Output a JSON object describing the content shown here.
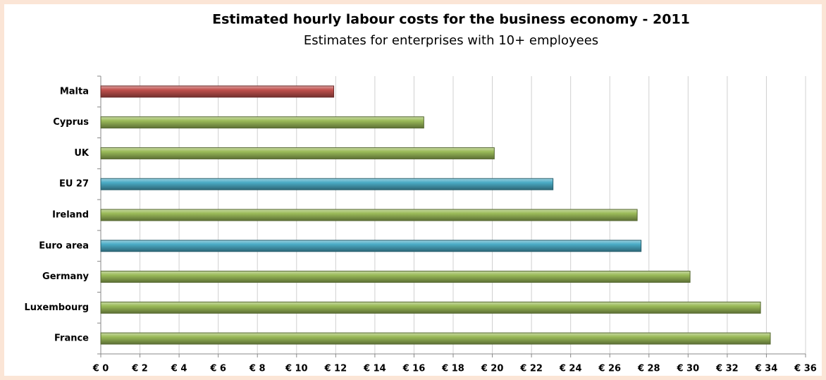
{
  "chart_data": {
    "type": "bar",
    "orientation": "horizontal",
    "title": "Estimated hourly labour costs for the business economy - 2011",
    "subtitle": "Estimates for enterprises with 10+ employees",
    "categories": [
      "Malta",
      "Cyprus",
      "UK",
      "EU 27",
      "Ireland",
      "Euro area",
      "Germany",
      "Luxembourg",
      "France"
    ],
    "values": [
      11.9,
      16.5,
      20.1,
      23.1,
      27.4,
      27.6,
      30.1,
      33.7,
      34.2
    ],
    "colors": [
      "#c0504d",
      "#9bbb59",
      "#9bbb59",
      "#4bacc6",
      "#9bbb59",
      "#4bacc6",
      "#9bbb59",
      "#9bbb59",
      "#9bbb59"
    ],
    "xlim": [
      0,
      36
    ],
    "xticks": [
      {
        "value": 0,
        "label": "€ 0"
      },
      {
        "value": 2,
        "label": "€ 2"
      },
      {
        "value": 4,
        "label": "€ 4"
      },
      {
        "value": 6,
        "label": "€ 6"
      },
      {
        "value": 8,
        "label": "€ 8"
      },
      {
        "value": 10,
        "label": "€ 10"
      },
      {
        "value": 12,
        "label": "€ 12"
      },
      {
        "value": 14,
        "label": "€ 14"
      },
      {
        "value": 16,
        "label": "€ 16"
      },
      {
        "value": 18,
        "label": "€ 18"
      },
      {
        "value": 20,
        "label": "€ 20"
      },
      {
        "value": 22,
        "label": "€ 22"
      },
      {
        "value": 24,
        "label": "€ 24"
      },
      {
        "value": 26,
        "label": "€ 26"
      },
      {
        "value": 28,
        "label": "€ 28"
      },
      {
        "value": 30,
        "label": "€ 30"
      },
      {
        "value": 32,
        "label": "€ 32"
      },
      {
        "value": 34,
        "label": "€ 34"
      },
      {
        "value": 36,
        "label": "€ 36"
      }
    ],
    "grid": true
  }
}
